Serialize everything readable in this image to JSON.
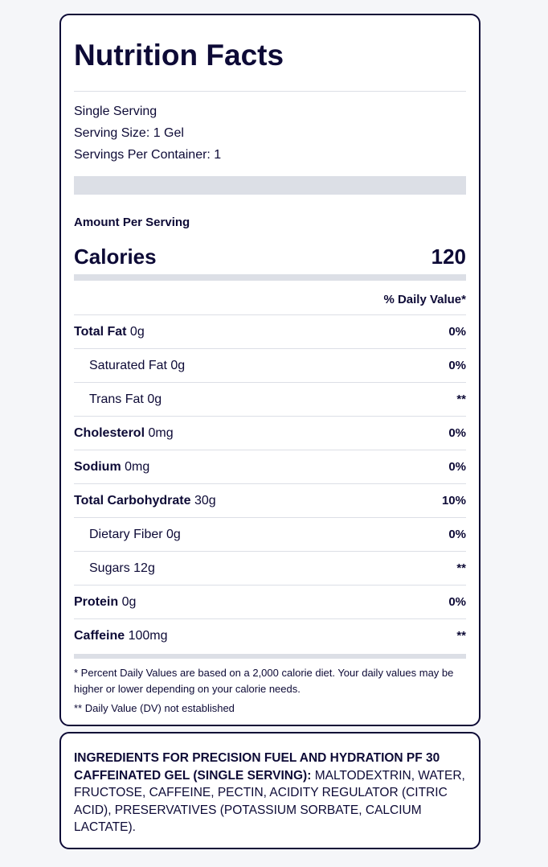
{
  "label": {
    "title": "Nutrition Facts",
    "serving_desc": "Single Serving",
    "serving_size": "Serving Size: 1 Gel",
    "servings_per_container": "Servings Per Container: 1",
    "amount_per_serving": "Amount Per Serving",
    "calories_label": "Calories",
    "calories_value": "120",
    "daily_value_header": "% Daily Value*",
    "nutrients": [
      {
        "name": "Total Fat",
        "amount": " 0g",
        "dv": "0%",
        "sub": false
      },
      {
        "name": "Saturated Fat 0g",
        "amount": "",
        "dv": "0%",
        "sub": true
      },
      {
        "name": "Trans Fat 0g",
        "amount": "",
        "dv": "**",
        "sub": true
      },
      {
        "name": "Cholesterol",
        "amount": " 0mg",
        "dv": "0%",
        "sub": false
      },
      {
        "name": "Sodium",
        "amount": " 0mg",
        "dv": "0%",
        "sub": false
      },
      {
        "name": "Total Carbohydrate",
        "amount": " 30g",
        "dv": "10%",
        "sub": false
      },
      {
        "name": "Dietary Fiber 0g",
        "amount": "",
        "dv": "0%",
        "sub": true
      },
      {
        "name": "Sugars 12g",
        "amount": "",
        "dv": "**",
        "sub": true
      },
      {
        "name": "Protein",
        "amount": " 0g",
        "dv": "0%",
        "sub": false
      },
      {
        "name": "Caffeine",
        "amount": " 100mg",
        "dv": "**",
        "sub": false
      }
    ],
    "footnote_1": "* Percent Daily Values are based on a 2,000 calorie diet. Your daily values may be higher or lower depending on your calorie needs.",
    "footnote_2": "** Daily Value (DV) not established"
  },
  "ingredients": {
    "heading": "INGREDIENTS FOR PRECISION FUEL AND HYDRATION PF 30 CAFFEINATED GEL (SINGLE SERVING):",
    "text": "MALTODEXTRIN, WATER, FRUCTOSE, CAFFEINE, PECTIN, ACIDITY REGULATOR (CITRIC ACID), PRESERVATIVES (POTASSIUM SORBATE, CALCIUM LACTATE)."
  }
}
